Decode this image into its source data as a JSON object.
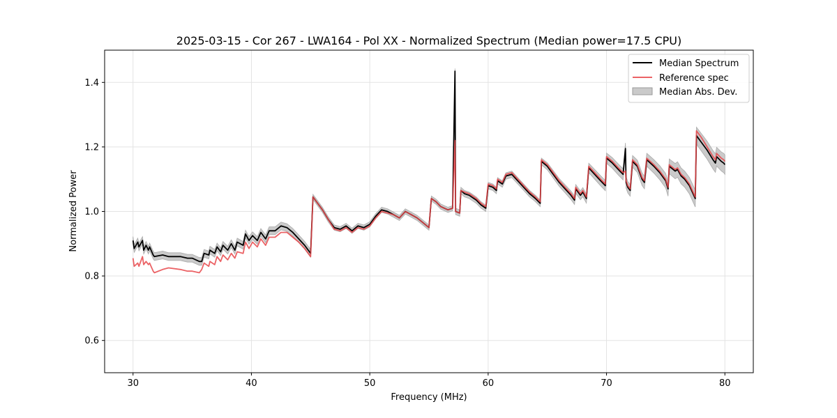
{
  "chart_data": {
    "type": "line",
    "title": "2025-03-15 - Cor 267 - LWA164 - Pol XX - Normalized Spectrum (Median power=17.5 CPU)",
    "xlabel": "Frequency (MHz)",
    "ylabel": "Normalized Power",
    "xlim": [
      27.6,
      82.4
    ],
    "ylim": [
      0.5,
      1.5
    ],
    "xticks": [
      30,
      40,
      50,
      60,
      70,
      80
    ],
    "yticks": [
      0.6,
      0.8,
      1.0,
      1.2,
      1.4
    ],
    "grid": true,
    "legend_position": "top-right",
    "colors": {
      "median": "#000000",
      "reference": "#e8474a",
      "band": "#bdbdbd",
      "overlap": "#8b0000"
    },
    "series": [
      {
        "name": "Median Spectrum",
        "points": [
          [
            30.0,
            0.91
          ],
          [
            30.1,
            0.885
          ],
          [
            30.4,
            0.905
          ],
          [
            30.5,
            0.89
          ],
          [
            30.8,
            0.91
          ],
          [
            30.9,
            0.88
          ],
          [
            31.1,
            0.895
          ],
          [
            31.3,
            0.88
          ],
          [
            31.4,
            0.89
          ],
          [
            31.7,
            0.865
          ],
          [
            31.8,
            0.86
          ],
          [
            32.5,
            0.865
          ],
          [
            33.0,
            0.86
          ],
          [
            34.0,
            0.86
          ],
          [
            34.6,
            0.855
          ],
          [
            35.0,
            0.855
          ],
          [
            35.6,
            0.845
          ],
          [
            35.8,
            0.845
          ],
          [
            36.0,
            0.87
          ],
          [
            36.4,
            0.865
          ],
          [
            36.5,
            0.88
          ],
          [
            36.9,
            0.87
          ],
          [
            37.1,
            0.89
          ],
          [
            37.4,
            0.875
          ],
          [
            37.6,
            0.895
          ],
          [
            38.0,
            0.88
          ],
          [
            38.3,
            0.9
          ],
          [
            38.6,
            0.88
          ],
          [
            38.8,
            0.905
          ],
          [
            39.3,
            0.895
          ],
          [
            39.5,
            0.93
          ],
          [
            39.8,
            0.91
          ],
          [
            40.1,
            0.925
          ],
          [
            40.5,
            0.91
          ],
          [
            40.8,
            0.935
          ],
          [
            41.2,
            0.915
          ],
          [
            41.5,
            0.94
          ],
          [
            42.0,
            0.94
          ],
          [
            42.5,
            0.955
          ],
          [
            43.0,
            0.95
          ],
          [
            43.5,
            0.935
          ],
          [
            44.0,
            0.915
          ],
          [
            44.5,
            0.895
          ],
          [
            45.0,
            0.87
          ],
          [
            45.2,
            1.045
          ],
          [
            45.5,
            1.03
          ],
          [
            46.0,
            1.005
          ],
          [
            46.5,
            0.975
          ],
          [
            47.0,
            0.95
          ],
          [
            47.5,
            0.945
          ],
          [
            48.0,
            0.955
          ],
          [
            48.5,
            0.94
          ],
          [
            49.0,
            0.955
          ],
          [
            49.5,
            0.95
          ],
          [
            50.0,
            0.96
          ],
          [
            50.5,
            0.985
          ],
          [
            51.0,
            1.005
          ],
          [
            51.5,
            1.0
          ],
          [
            52.0,
            0.99
          ],
          [
            52.5,
            0.98
          ],
          [
            53.0,
            1.0
          ],
          [
            53.5,
            0.99
          ],
          [
            54.0,
            0.98
          ],
          [
            54.5,
            0.965
          ],
          [
            55.0,
            0.95
          ],
          [
            55.2,
            1.04
          ],
          [
            55.6,
            1.03
          ],
          [
            56.0,
            1.015
          ],
          [
            56.6,
            1.005
          ],
          [
            57.0,
            1.01
          ],
          [
            57.2,
            1.435
          ],
          [
            57.25,
            1.0
          ],
          [
            57.6,
            0.995
          ],
          [
            57.7,
            1.065
          ],
          [
            58.0,
            1.055
          ],
          [
            58.4,
            1.05
          ],
          [
            58.6,
            1.045
          ],
          [
            59.0,
            1.035
          ],
          [
            59.4,
            1.02
          ],
          [
            59.8,
            1.01
          ],
          [
            60.0,
            1.08
          ],
          [
            60.4,
            1.075
          ],
          [
            60.7,
            1.065
          ],
          [
            60.8,
            1.095
          ],
          [
            61.2,
            1.085
          ],
          [
            61.5,
            1.11
          ],
          [
            62.0,
            1.115
          ],
          [
            62.5,
            1.095
          ],
          [
            63.0,
            1.075
          ],
          [
            63.5,
            1.055
          ],
          [
            64.0,
            1.04
          ],
          [
            64.4,
            1.025
          ],
          [
            64.5,
            1.155
          ],
          [
            65.0,
            1.14
          ],
          [
            65.5,
            1.115
          ],
          [
            66.0,
            1.09
          ],
          [
            66.5,
            1.07
          ],
          [
            67.0,
            1.05
          ],
          [
            67.3,
            1.035
          ],
          [
            67.4,
            1.07
          ],
          [
            67.8,
            1.05
          ],
          [
            68.0,
            1.06
          ],
          [
            68.3,
            1.04
          ],
          [
            68.5,
            1.135
          ],
          [
            69.0,
            1.115
          ],
          [
            69.5,
            1.095
          ],
          [
            69.9,
            1.08
          ],
          [
            70.0,
            1.165
          ],
          [
            70.5,
            1.15
          ],
          [
            71.0,
            1.13
          ],
          [
            71.4,
            1.115
          ],
          [
            71.6,
            1.195
          ],
          [
            71.65,
            1.09
          ],
          [
            71.8,
            1.075
          ],
          [
            72.0,
            1.065
          ],
          [
            72.2,
            1.155
          ],
          [
            72.6,
            1.14
          ],
          [
            73.0,
            1.1
          ],
          [
            73.2,
            1.09
          ],
          [
            73.4,
            1.16
          ],
          [
            74.0,
            1.14
          ],
          [
            74.5,
            1.12
          ],
          [
            75.0,
            1.095
          ],
          [
            75.2,
            1.07
          ],
          [
            75.3,
            1.14
          ],
          [
            75.8,
            1.125
          ],
          [
            76.0,
            1.13
          ],
          [
            76.3,
            1.11
          ],
          [
            76.6,
            1.1
          ],
          [
            77.0,
            1.08
          ],
          [
            77.5,
            1.04
          ],
          [
            77.6,
            1.235
          ],
          [
            78.0,
            1.215
          ],
          [
            78.5,
            1.19
          ],
          [
            79.0,
            1.16
          ],
          [
            79.2,
            1.15
          ],
          [
            79.3,
            1.17
          ],
          [
            79.7,
            1.155
          ],
          [
            79.9,
            1.15
          ],
          [
            80.0,
            1.145
          ]
        ]
      },
      {
        "name": "Reference spec",
        "points": [
          [
            30.0,
            0.855
          ],
          [
            30.1,
            0.83
          ],
          [
            30.4,
            0.84
          ],
          [
            30.5,
            0.83
          ],
          [
            30.8,
            0.86
          ],
          [
            30.9,
            0.835
          ],
          [
            31.1,
            0.845
          ],
          [
            31.3,
            0.835
          ],
          [
            31.4,
            0.84
          ],
          [
            31.7,
            0.815
          ],
          [
            31.8,
            0.81
          ],
          [
            32.5,
            0.82
          ],
          [
            33.0,
            0.825
          ],
          [
            34.0,
            0.82
          ],
          [
            34.6,
            0.815
          ],
          [
            35.0,
            0.815
          ],
          [
            35.6,
            0.81
          ],
          [
            35.8,
            0.82
          ],
          [
            36.0,
            0.84
          ],
          [
            36.4,
            0.83
          ],
          [
            36.5,
            0.845
          ],
          [
            36.9,
            0.835
          ],
          [
            37.1,
            0.86
          ],
          [
            37.4,
            0.845
          ],
          [
            37.6,
            0.865
          ],
          [
            38.0,
            0.85
          ],
          [
            38.3,
            0.87
          ],
          [
            38.6,
            0.855
          ],
          [
            38.8,
            0.875
          ],
          [
            39.3,
            0.87
          ],
          [
            39.5,
            0.905
          ],
          [
            39.8,
            0.885
          ],
          [
            40.1,
            0.905
          ],
          [
            40.5,
            0.89
          ],
          [
            40.8,
            0.915
          ],
          [
            41.2,
            0.895
          ],
          [
            41.5,
            0.92
          ],
          [
            42.0,
            0.92
          ],
          [
            42.5,
            0.935
          ],
          [
            43.0,
            0.935
          ],
          [
            43.5,
            0.92
          ],
          [
            44.0,
            0.905
          ],
          [
            44.5,
            0.885
          ],
          [
            45.0,
            0.86
          ],
          [
            45.2,
            1.045
          ],
          [
            45.5,
            1.03
          ],
          [
            46.0,
            1.005
          ],
          [
            46.5,
            0.975
          ],
          [
            47.0,
            0.945
          ],
          [
            47.5,
            0.94
          ],
          [
            48.0,
            0.95
          ],
          [
            48.5,
            0.935
          ],
          [
            49.0,
            0.95
          ],
          [
            49.5,
            0.945
          ],
          [
            50.0,
            0.955
          ],
          [
            50.5,
            0.98
          ],
          [
            51.0,
            1.0
          ],
          [
            51.5,
            0.995
          ],
          [
            52.0,
            0.99
          ],
          [
            52.5,
            0.98
          ],
          [
            53.0,
            1.0
          ],
          [
            53.5,
            0.99
          ],
          [
            54.0,
            0.98
          ],
          [
            54.5,
            0.965
          ],
          [
            55.0,
            0.95
          ],
          [
            55.2,
            1.04
          ],
          [
            55.6,
            1.03
          ],
          [
            56.0,
            1.015
          ],
          [
            56.6,
            1.005
          ],
          [
            57.0,
            1.01
          ],
          [
            57.2,
            1.22
          ],
          [
            57.25,
            1.0
          ],
          [
            57.6,
            0.995
          ],
          [
            57.7,
            1.065
          ],
          [
            58.0,
            1.06
          ],
          [
            58.4,
            1.055
          ],
          [
            58.6,
            1.05
          ],
          [
            59.0,
            1.04
          ],
          [
            59.4,
            1.025
          ],
          [
            59.8,
            1.015
          ],
          [
            60.0,
            1.085
          ],
          [
            60.4,
            1.08
          ],
          [
            60.7,
            1.07
          ],
          [
            60.8,
            1.1
          ],
          [
            61.2,
            1.09
          ],
          [
            61.5,
            1.115
          ],
          [
            62.0,
            1.12
          ],
          [
            62.5,
            1.1
          ],
          [
            63.0,
            1.08
          ],
          [
            63.5,
            1.06
          ],
          [
            64.0,
            1.045
          ],
          [
            64.4,
            1.03
          ],
          [
            64.5,
            1.16
          ],
          [
            65.0,
            1.145
          ],
          [
            65.5,
            1.12
          ],
          [
            66.0,
            1.095
          ],
          [
            66.5,
            1.075
          ],
          [
            67.0,
            1.055
          ],
          [
            67.3,
            1.04
          ],
          [
            67.4,
            1.075
          ],
          [
            67.8,
            1.055
          ],
          [
            68.0,
            1.065
          ],
          [
            68.3,
            1.045
          ],
          [
            68.5,
            1.14
          ],
          [
            69.0,
            1.12
          ],
          [
            69.5,
            1.1
          ],
          [
            69.9,
            1.085
          ],
          [
            70.0,
            1.17
          ],
          [
            70.5,
            1.155
          ],
          [
            71.0,
            1.135
          ],
          [
            71.4,
            1.12
          ],
          [
            71.6,
            1.125
          ],
          [
            71.65,
            1.095
          ],
          [
            71.8,
            1.08
          ],
          [
            72.0,
            1.07
          ],
          [
            72.2,
            1.16
          ],
          [
            72.6,
            1.145
          ],
          [
            73.0,
            1.105
          ],
          [
            73.2,
            1.095
          ],
          [
            73.4,
            1.165
          ],
          [
            74.0,
            1.145
          ],
          [
            74.5,
            1.125
          ],
          [
            75.0,
            1.1
          ],
          [
            75.2,
            1.075
          ],
          [
            75.3,
            1.145
          ],
          [
            75.8,
            1.13
          ],
          [
            76.0,
            1.135
          ],
          [
            76.3,
            1.115
          ],
          [
            76.6,
            1.105
          ],
          [
            77.0,
            1.085
          ],
          [
            77.5,
            1.045
          ],
          [
            77.6,
            1.25
          ],
          [
            78.0,
            1.23
          ],
          [
            78.5,
            1.2
          ],
          [
            79.0,
            1.17
          ],
          [
            79.2,
            1.16
          ],
          [
            79.3,
            1.18
          ],
          [
            79.7,
            1.165
          ],
          [
            79.9,
            1.16
          ],
          [
            80.0,
            1.155
          ]
        ]
      },
      {
        "name": "Median Abs. Dev.",
        "type": "band",
        "halfwidth_points": [
          [
            30.0,
            0.012
          ],
          [
            45.0,
            0.012
          ],
          [
            45.2,
            0.008
          ],
          [
            57.2,
            0.008
          ],
          [
            57.2,
            0.055
          ],
          [
            57.25,
            0.01
          ],
          [
            64.0,
            0.01
          ],
          [
            72.0,
            0.018
          ],
          [
            80.0,
            0.03
          ]
        ]
      }
    ]
  }
}
